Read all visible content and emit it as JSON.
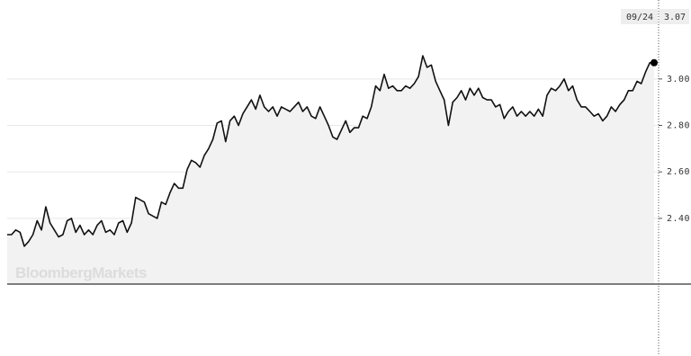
{
  "chart_data": {
    "type": "line",
    "watermark": "BloombergMarkets",
    "last_date": "09/24",
    "color": "#111111",
    "area_color": "#f2f2f2",
    "grid": true,
    "ylim": [
      2.117,
      3.34
    ],
    "yticks": [
      {
        "value": 2.4,
        "label": "2.40"
      },
      {
        "value": 2.6,
        "label": "2.60"
      },
      {
        "value": 2.8,
        "label": "2.80"
      },
      {
        "value": 3.0,
        "label": "3.00"
      }
    ],
    "values": [
      2.33,
      2.33,
      2.35,
      2.34,
      2.28,
      2.3,
      2.33,
      2.39,
      2.35,
      2.45,
      2.38,
      2.35,
      2.32,
      2.33,
      2.39,
      2.4,
      2.34,
      2.37,
      2.33,
      2.35,
      2.33,
      2.37,
      2.39,
      2.34,
      2.35,
      2.33,
      2.38,
      2.39,
      2.34,
      2.38,
      2.49,
      2.48,
      2.47,
      2.42,
      2.41,
      2.4,
      2.47,
      2.46,
      2.51,
      2.55,
      2.53,
      2.53,
      2.61,
      2.65,
      2.64,
      2.62,
      2.67,
      2.7,
      2.74,
      2.81,
      2.82,
      2.73,
      2.82,
      2.84,
      2.8,
      2.85,
      2.88,
      2.91,
      2.87,
      2.93,
      2.88,
      2.86,
      2.88,
      2.84,
      2.88,
      2.87,
      2.86,
      2.88,
      2.9,
      2.86,
      2.88,
      2.84,
      2.83,
      2.88,
      2.84,
      2.8,
      2.75,
      2.74,
      2.78,
      2.82,
      2.77,
      2.79,
      2.79,
      2.84,
      2.83,
      2.88,
      2.97,
      2.95,
      3.02,
      2.96,
      2.97,
      2.95,
      2.95,
      2.97,
      2.96,
      2.98,
      3.01,
      3.1,
      3.05,
      3.06,
      2.99,
      2.95,
      2.91,
      2.8,
      2.9,
      2.92,
      2.95,
      2.91,
      2.96,
      2.93,
      2.96,
      2.92,
      2.91,
      2.91,
      2.88,
      2.89,
      2.83,
      2.86,
      2.88,
      2.84,
      2.86,
      2.84,
      2.86,
      2.84,
      2.87,
      2.84,
      2.93,
      2.96,
      2.95,
      2.97,
      3.0,
      2.95,
      2.97,
      2.91,
      2.88,
      2.88,
      2.86,
      2.84,
      2.85,
      2.82,
      2.84,
      2.88,
      2.86,
      2.89,
      2.91,
      2.95,
      2.95,
      2.99,
      2.98,
      3.03,
      3.07,
      3.07
    ]
  }
}
